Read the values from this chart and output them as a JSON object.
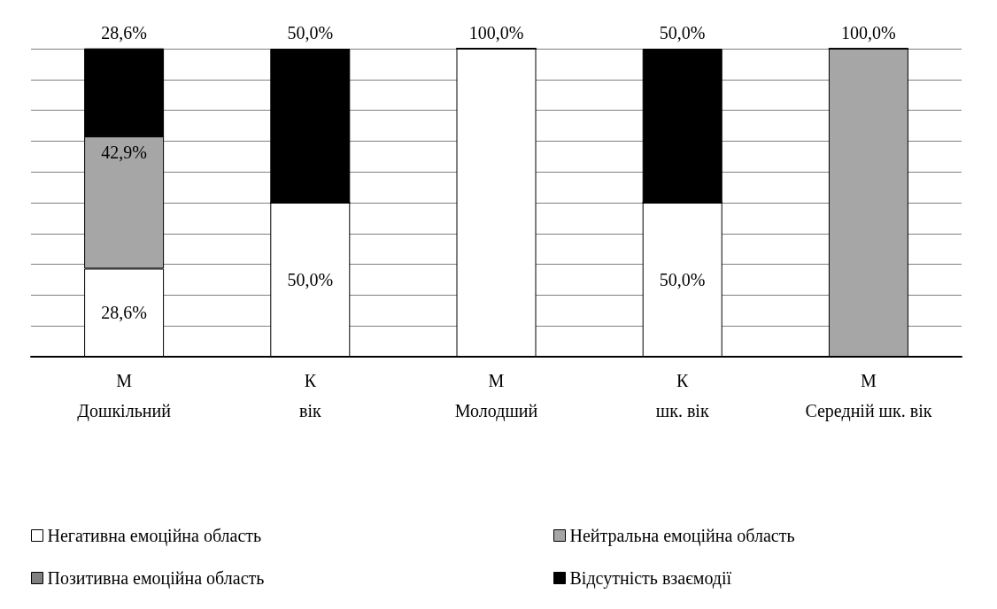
{
  "chart_data": {
    "type": "bar",
    "stacked": true,
    "categories": [
      "М\nДошкільний",
      "К\nвік",
      "М\nМолодший",
      "К\nшк. вік",
      "М\nСередній шк. вік"
    ],
    "series": [
      {
        "name": "Негативна емоційна область",
        "color": "#ffffff",
        "values": [
          28.6,
          50.0,
          100.0,
          50.0,
          0
        ],
        "value_labels": [
          "28,6%",
          "50,0%",
          "100,0%",
          "50,0%",
          null
        ]
      },
      {
        "name": "Нейтральна емоційна область",
        "color": "#a6a6a6",
        "values": [
          42.9,
          0,
          0,
          0,
          100.0
        ],
        "value_labels": [
          "42,9%",
          null,
          null,
          null,
          "100,0%"
        ]
      },
      {
        "name": "Позитивна емоційна область",
        "color": "#808080",
        "values": [
          0,
          0,
          0,
          0,
          0
        ],
        "value_labels": [
          null,
          null,
          null,
          null,
          null
        ]
      },
      {
        "name": "Відсутність взаємодії",
        "color": "#000000",
        "values": [
          28.6,
          50.0,
          0,
          50.0,
          0
        ],
        "value_labels": [
          "28,6%",
          "50,0%",
          null,
          "50,0%",
          null
        ]
      }
    ],
    "ylim": [
      0,
      100
    ],
    "yticks": [
      0,
      10,
      20,
      30,
      40,
      50,
      60,
      70,
      80,
      90,
      100
    ],
    "grid": "y",
    "tick_labels": "x",
    "legend": "bottom"
  }
}
